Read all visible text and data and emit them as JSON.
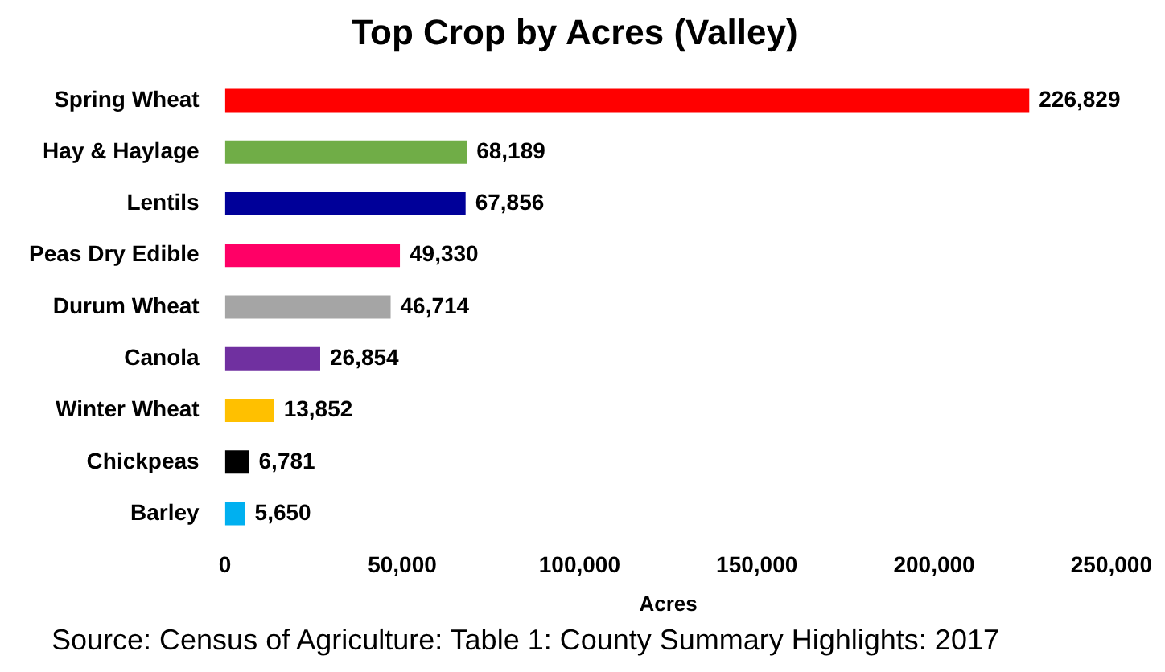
{
  "chart_data": {
    "type": "bar",
    "orientation": "horizontal",
    "title": "Top Crop by Acres (Valley)",
    "xlabel": "Acres",
    "categories": [
      "Spring Wheat",
      "Hay & Haylage",
      "Lentils",
      "Peas Dry Edible",
      "Durum Wheat",
      "Canola",
      "Winter Wheat",
      "Chickpeas",
      "Barley"
    ],
    "values": [
      226829,
      68189,
      67856,
      49330,
      46714,
      26854,
      13852,
      6781,
      5650
    ],
    "value_labels": [
      "226,829",
      "68,189",
      "67,856",
      "49,330",
      "46,714",
      "26,854",
      "13,852",
      "6,781",
      "5,650"
    ],
    "colors": [
      "#ff0000",
      "#70ad47",
      "#000099",
      "#ff0066",
      "#a5a5a5",
      "#7030a0",
      "#ffc000",
      "#000000",
      "#00b0f0"
    ],
    "xlim": [
      0,
      250000
    ],
    "xticks": [
      0,
      {
        "value": 50000,
        "label": "50,000"
      },
      {
        "value": 100000,
        "label": "100,000"
      },
      {
        "value": 150000,
        "label": "150,000"
      },
      {
        "value": 200000,
        "label": "200,000"
      },
      {
        "value": 250000,
        "label": "250,000"
      }
    ],
    "grid": false,
    "legend": false,
    "annotations": [
      "Source: Census of Agriculture: Table 1: County Summary Highlights: 2017"
    ]
  }
}
